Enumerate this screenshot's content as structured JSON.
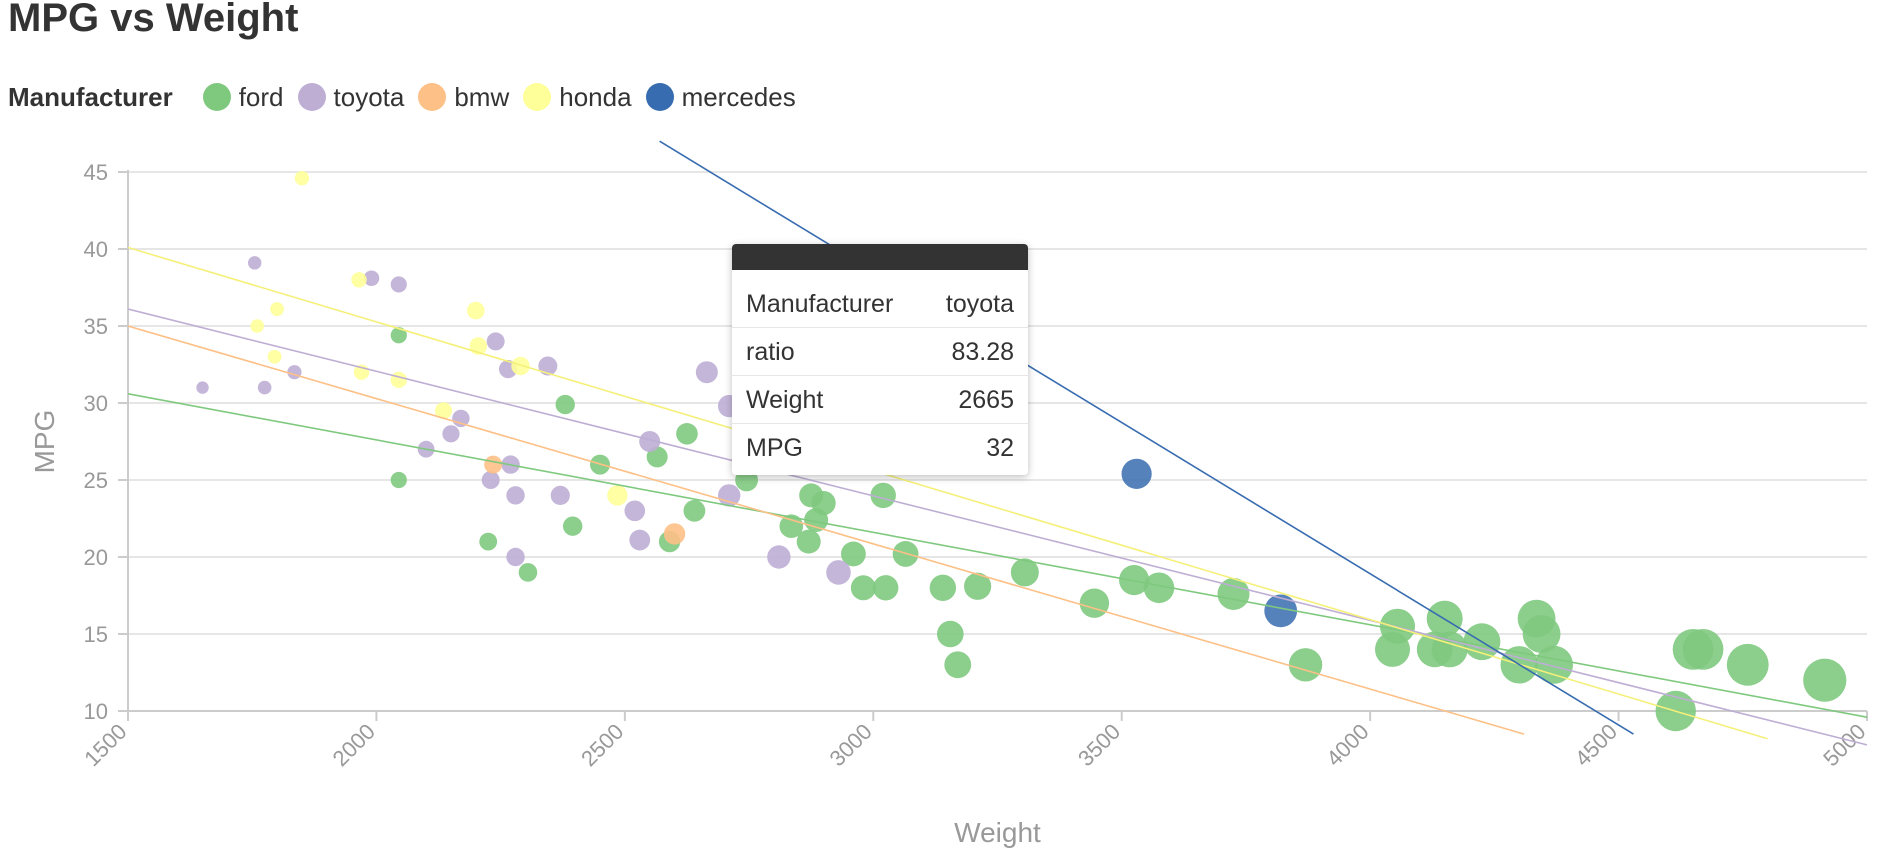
{
  "chart_data": {
    "type": "scatter",
    "title": "MPG vs Weight",
    "xlabel": "Weight",
    "ylabel": "MPG",
    "xlim": [
      1500,
      5000
    ],
    "ylim": [
      10,
      45
    ],
    "xticks": [
      1500,
      2000,
      2500,
      3000,
      3500,
      4000,
      4500,
      5000
    ],
    "yticks": [
      10,
      15,
      20,
      25,
      30,
      35,
      40,
      45
    ],
    "grid": "horizontal",
    "legend": {
      "title": "Manufacturer",
      "placement": "top-left",
      "items": [
        {
          "name": "ford",
          "color": "#7fc97f"
        },
        {
          "name": "toyota",
          "color": "#beaed4"
        },
        {
          "name": "bmw",
          "color": "#fdc086"
        },
        {
          "name": "honda",
          "color": "#ffff99"
        },
        {
          "name": "mercedes",
          "color": "#386cb0"
        }
      ]
    },
    "series": [
      {
        "name": "ford",
        "color": "#7fc97f",
        "trend": [
          [
            1500,
            30.6
          ],
          [
            5000,
            9.6
          ]
        ],
        "points": [
          [
            2045,
            34.4
          ],
          [
            2045,
            25
          ],
          [
            2225,
            21
          ],
          [
            2305,
            19
          ],
          [
            2380,
            29.9
          ],
          [
            2395,
            22
          ],
          [
            2450,
            26
          ],
          [
            2565,
            26.5
          ],
          [
            2590,
            21
          ],
          [
            2625,
            28
          ],
          [
            2640,
            23
          ],
          [
            2745,
            25
          ],
          [
            2835,
            22
          ],
          [
            2870,
            21
          ],
          [
            2875,
            24
          ],
          [
            2885,
            22.4
          ],
          [
            2900,
            23.5
          ],
          [
            2960,
            20.2
          ],
          [
            2980,
            18
          ],
          [
            3020,
            24
          ],
          [
            3025,
            18
          ],
          [
            3065,
            20.2
          ],
          [
            3140,
            18
          ],
          [
            3155,
            15
          ],
          [
            3170,
            13
          ],
          [
            3210,
            18.1
          ],
          [
            3305,
            19
          ],
          [
            3445,
            17
          ],
          [
            3525,
            18.5
          ],
          [
            3575,
            18
          ],
          [
            3725,
            17.6
          ],
          [
            3870,
            13
          ],
          [
            4045,
            14
          ],
          [
            4055,
            15.5
          ],
          [
            4130,
            14
          ],
          [
            4150,
            16
          ],
          [
            4160,
            14
          ],
          [
            4225,
            14.5
          ],
          [
            4300,
            13
          ],
          [
            4335,
            16
          ],
          [
            4345,
            15
          ],
          [
            4370,
            13
          ],
          [
            4615,
            10
          ],
          [
            4650,
            14
          ],
          [
            4670,
            14
          ],
          [
            4760,
            13
          ],
          [
            4915,
            12
          ]
        ]
      },
      {
        "name": "toyota",
        "color": "#beaed4",
        "trend": [
          [
            1500,
            36.1
          ],
          [
            5000,
            7.8
          ]
        ],
        "points": [
          [
            1650,
            31
          ],
          [
            1755,
            39.1
          ],
          [
            1775,
            31
          ],
          [
            1835,
            32
          ],
          [
            1990,
            38.1
          ],
          [
            2045,
            37.7
          ],
          [
            2100,
            27
          ],
          [
            2150,
            28
          ],
          [
            2170,
            29
          ],
          [
            2240,
            34
          ],
          [
            2265,
            32.2
          ],
          [
            2270,
            26
          ],
          [
            2230,
            25
          ],
          [
            2280,
            24
          ],
          [
            2280,
            20
          ],
          [
            2345,
            32.4
          ],
          [
            2370,
            24
          ],
          [
            2520,
            23
          ],
          [
            2530,
            21.1
          ],
          [
            2550,
            27.5
          ],
          [
            2665,
            32
          ],
          [
            2710,
            24
          ],
          [
            2710,
            29.8
          ],
          [
            2810,
            20
          ],
          [
            2930,
            19
          ]
        ]
      },
      {
        "name": "bmw",
        "color": "#fdc086",
        "trend": [
          [
            1500,
            35
          ],
          [
            4310,
            8.5
          ]
        ],
        "points": [
          [
            2235,
            26
          ],
          [
            2600,
            21.5
          ]
        ]
      },
      {
        "name": "honda",
        "color": "#ffff99",
        "trend": [
          [
            1500,
            40.1
          ],
          [
            4800,
            8.2
          ]
        ],
        "points": [
          [
            1850,
            44.6
          ],
          [
            1760,
            35
          ],
          [
            1795,
            33
          ],
          [
            1800,
            36.1
          ],
          [
            1965,
            38
          ],
          [
            1970,
            32
          ],
          [
            2045,
            31.5
          ],
          [
            2135,
            29.5
          ],
          [
            2200,
            36
          ],
          [
            2205,
            33.7
          ],
          [
            2290,
            32.4
          ],
          [
            2485,
            24
          ]
        ]
      },
      {
        "name": "mercedes",
        "color": "#386cb0",
        "trend": [
          [
            2570,
            47
          ],
          [
            4530,
            8.5
          ]
        ],
        "points": [
          [
            3530,
            25.4
          ],
          [
            3820,
            16.5
          ]
        ]
      }
    ],
    "highlight": {
      "Manufacturer": "toyota",
      "ratio": 83.28,
      "Weight": 2665,
      "MPG": 32
    }
  },
  "tooltip": {
    "rows": [
      {
        "label": "Manufacturer",
        "value": "toyota"
      },
      {
        "label": "ratio",
        "value": "83.28"
      },
      {
        "label": "Weight",
        "value": "2665"
      },
      {
        "label": "MPG",
        "value": "32"
      }
    ]
  }
}
